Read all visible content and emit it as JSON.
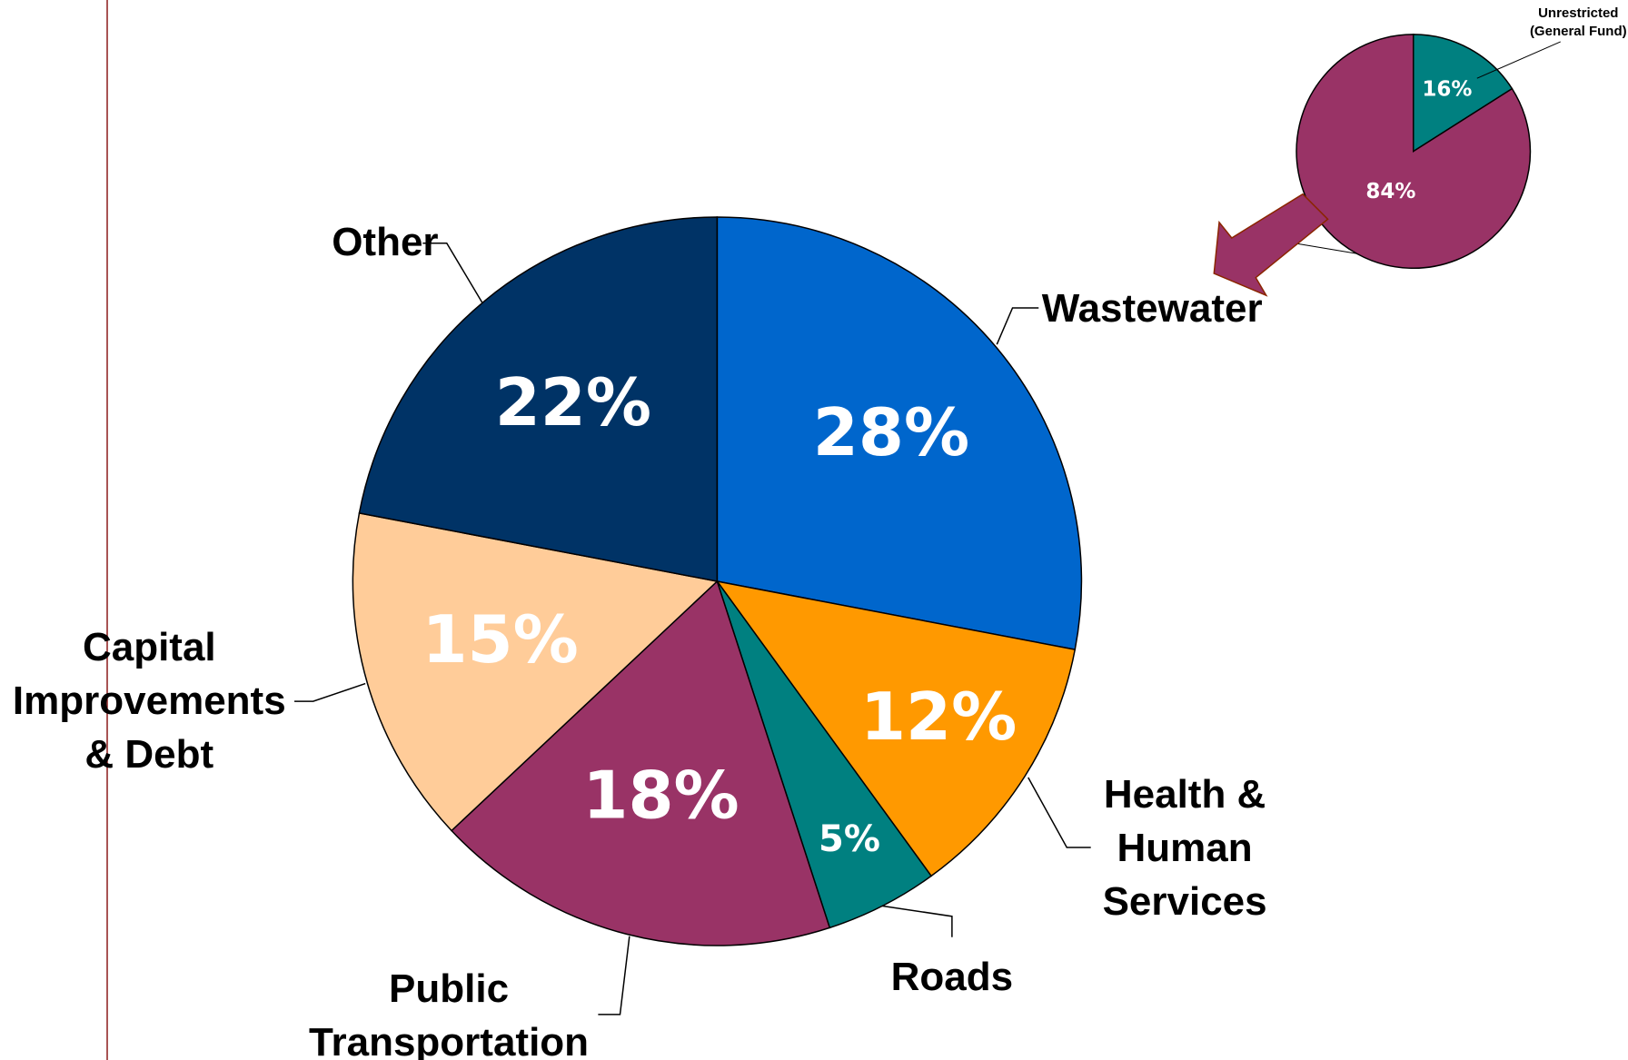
{
  "chart_data": [
    {
      "type": "pie",
      "categories": [
        "Wastewater",
        "Health & Human Services",
        "Roads",
        "Public Transportation",
        "Capital Improvements & Debt",
        "Other"
      ],
      "values": [
        28,
        12,
        5,
        18,
        15,
        22
      ],
      "value_labels": [
        "28%",
        "12%",
        "5%",
        "18%",
        "15%",
        "22%"
      ],
      "colors": [
        "#0066cc",
        "#ff9900",
        "#008080",
        "#993366",
        "#ffcc99",
        "#003366"
      ]
    },
    {
      "type": "pie",
      "categories": [
        "Unrestricted (General Fund)",
        null
      ],
      "values": [
        16,
        84
      ],
      "value_labels": [
        "16%",
        "84%"
      ],
      "colors": [
        "#008080",
        "#993366"
      ]
    }
  ]
}
